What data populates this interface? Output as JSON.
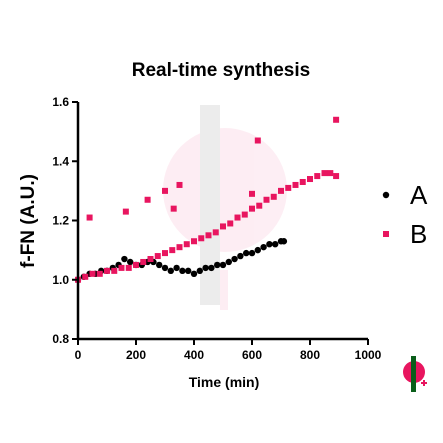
{
  "chart_data": {
    "type": "scatter",
    "title": "Real-time synthesis",
    "xlabel": "Time (min)",
    "ylabel": "f-FN (A.U.)",
    "xlim": [
      0,
      1000
    ],
    "ylim": [
      0.8,
      1.6
    ],
    "xticks": [
      "0",
      "200",
      "400",
      "600",
      "800",
      "1000"
    ],
    "yticks": [
      "0.8",
      "1.0",
      "1.2",
      "1.4",
      "1.6"
    ],
    "legend_position": "right",
    "grid": false,
    "series": [
      {
        "name": "A",
        "color": "#000000",
        "x": [
          0,
          20,
          40,
          60,
          80,
          100,
          120,
          140,
          160,
          180,
          200,
          220,
          240,
          260,
          280,
          300,
          320,
          340,
          360,
          380,
          400,
          420,
          440,
          460,
          480,
          500,
          520,
          540,
          560,
          580,
          600,
          620,
          640,
          660,
          680,
          700,
          710
        ],
        "y": [
          1.0,
          1.01,
          1.02,
          1.02,
          1.03,
          1.03,
          1.04,
          1.05,
          1.07,
          1.06,
          1.05,
          1.05,
          1.06,
          1.06,
          1.05,
          1.04,
          1.03,
          1.04,
          1.03,
          1.03,
          1.02,
          1.03,
          1.04,
          1.04,
          1.05,
          1.05,
          1.06,
          1.07,
          1.08,
          1.09,
          1.09,
          1.1,
          1.11,
          1.12,
          1.12,
          1.13,
          1.13
        ]
      },
      {
        "name": "B",
        "color": "#e8155f",
        "x": [
          0,
          25,
          50,
          75,
          100,
          125,
          150,
          175,
          200,
          225,
          250,
          275,
          300,
          325,
          350,
          375,
          400,
          425,
          450,
          475,
          500,
          525,
          550,
          575,
          600,
          625,
          650,
          675,
          700,
          725,
          750,
          775,
          800,
          825,
          850,
          870,
          890,
          40,
          165,
          240,
          300,
          330,
          350,
          600,
          620,
          890
        ],
        "y": [
          1.0,
          1.01,
          1.02,
          1.02,
          1.03,
          1.03,
          1.04,
          1.04,
          1.05,
          1.06,
          1.07,
          1.08,
          1.09,
          1.1,
          1.11,
          1.12,
          1.13,
          1.14,
          1.15,
          1.16,
          1.18,
          1.19,
          1.21,
          1.22,
          1.24,
          1.25,
          1.27,
          1.28,
          1.3,
          1.31,
          1.32,
          1.33,
          1.34,
          1.35,
          1.36,
          1.36,
          1.35,
          1.21,
          1.23,
          1.27,
          1.3,
          1.24,
          1.32,
          1.29,
          1.47,
          1.54
        ]
      }
    ]
  }
}
